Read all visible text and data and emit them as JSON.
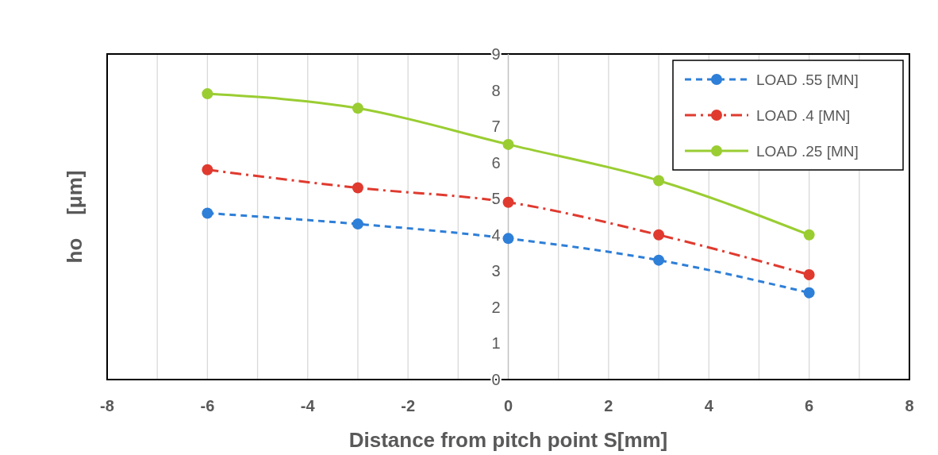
{
  "chart_data": {
    "type": "line",
    "xlabel": "Distance from pitch point S[mm]",
    "ylabel": "ho    [μm]",
    "x": [
      -6,
      -3,
      0,
      3,
      6
    ],
    "series": [
      {
        "name": "LOAD .55 [MN]",
        "color": "#2e7fd8",
        "values": [
          4.6,
          4.3,
          3.9,
          3.3,
          2.4
        ],
        "line_style": "dashed"
      },
      {
        "name": "LOAD .4 [MN]",
        "color": "#e03a2f",
        "values": [
          5.8,
          5.3,
          4.9,
          4.0,
          2.9
        ],
        "line_style": "dashdot"
      },
      {
        "name": "LOAD .25 [MN]",
        "color": "#9acd32",
        "values": [
          7.9,
          7.5,
          6.5,
          5.5,
          4.0
        ],
        "line_style": "solid"
      }
    ],
    "xlim": [
      -8,
      8
    ],
    "xticks": [
      -8,
      {
        "value": -7,
        "label": null
      },
      -6,
      {
        "value": -5,
        "label": null
      },
      -4,
      {
        "value": -3,
        "label": null
      },
      -2,
      {
        "value": -1,
        "label": null
      },
      0,
      {
        "value": 1,
        "label": null
      },
      2,
      {
        "value": 3,
        "label": null
      },
      4,
      {
        "value": 5,
        "label": null
      },
      6,
      {
        "value": 7,
        "label": null
      },
      8
    ],
    "ylim": [
      0,
      9
    ],
    "yticks": [
      0,
      1,
      2,
      3,
      4,
      5,
      6,
      7,
      8,
      9
    ],
    "grid": "x",
    "legend": "top right",
    "marker": "circle"
  }
}
